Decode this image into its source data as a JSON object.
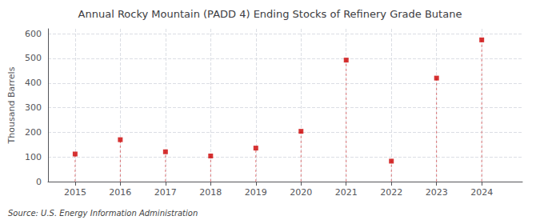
{
  "chart_data": {
    "type": "scatter",
    "title": "Annual Rocky Mountain (PADD 4) Ending Stocks of Refinery Grade Butane",
    "ylabel": "Thousand Barrels",
    "annotation": "Source: U.S. Energy Information Administration",
    "x": [
      2015,
      2016,
      2017,
      2018,
      2019,
      2020,
      2021,
      2022,
      2023,
      2024
    ],
    "values": [
      112,
      170,
      121,
      104,
      136,
      204,
      493,
      83,
      420,
      575
    ],
    "xlim": [
      2014.4,
      2024.9
    ],
    "ylim": [
      0,
      620
    ],
    "xticks": [
      2015,
      2016,
      2017,
      2018,
      2019,
      2020,
      2021,
      2022,
      2023,
      2024
    ],
    "yticks": [
      0,
      100,
      200,
      300,
      400,
      500,
      600
    ],
    "color": "#cc0000",
    "marker": "square",
    "grid": true
  }
}
